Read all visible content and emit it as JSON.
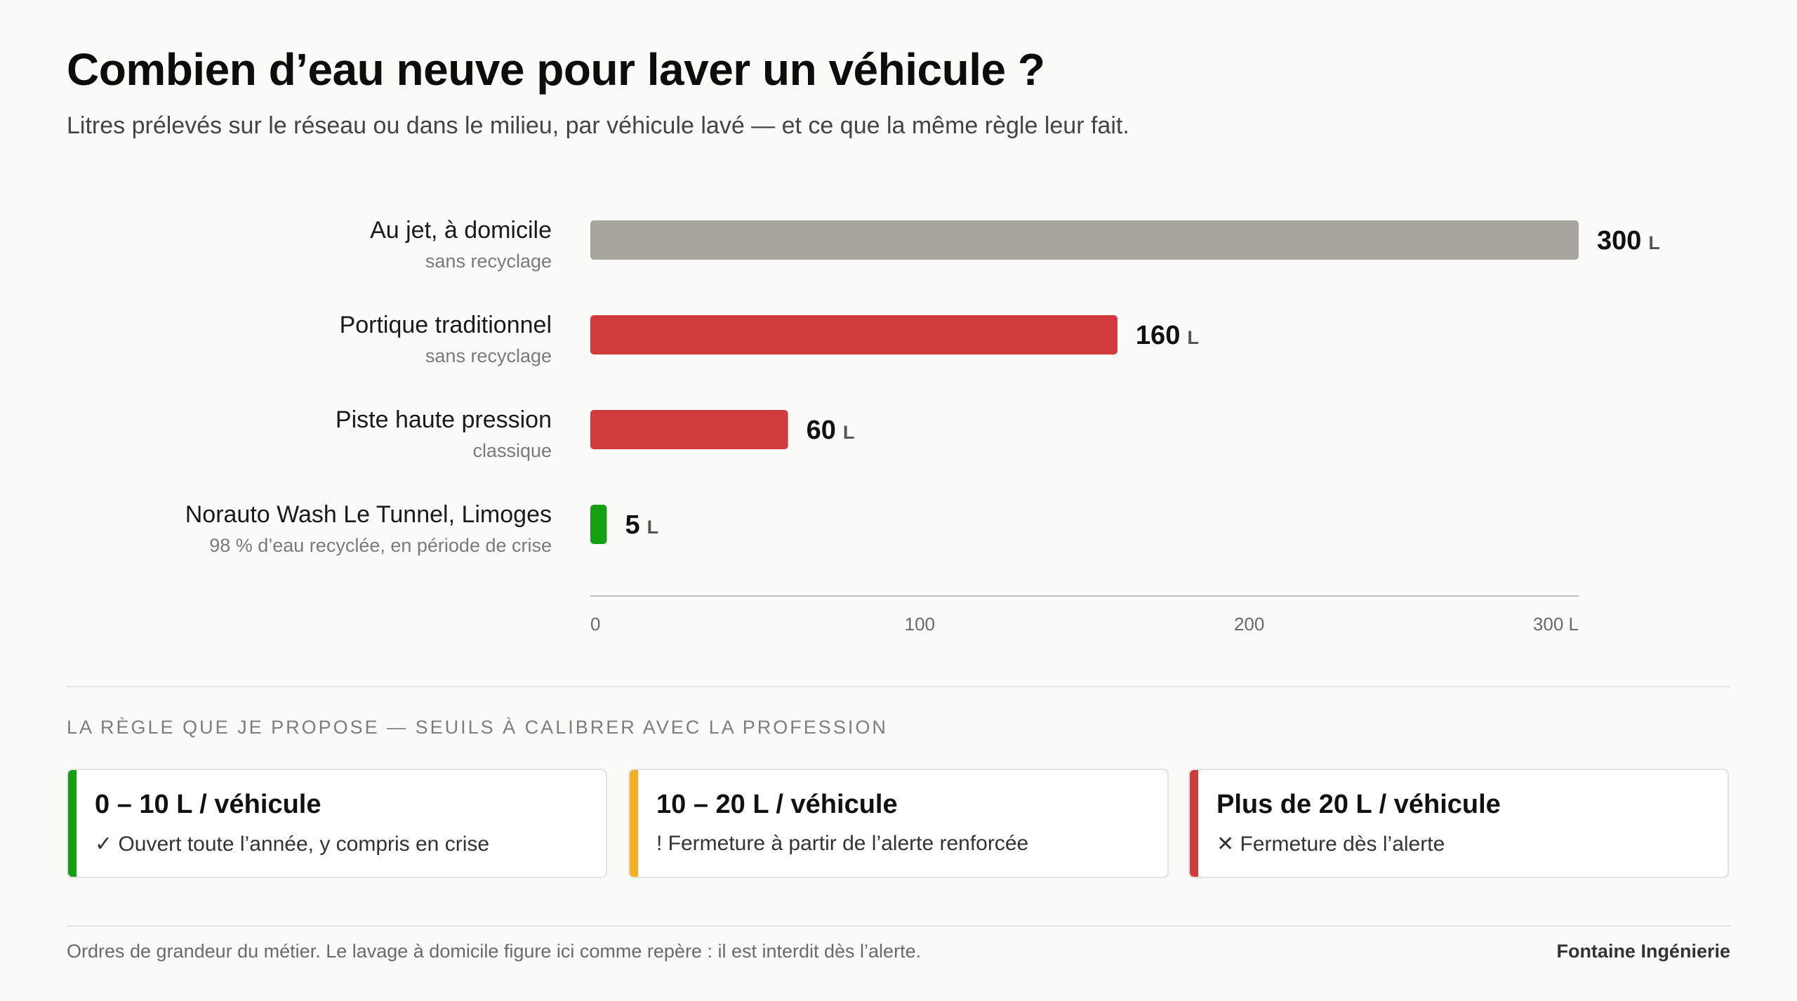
{
  "header": {
    "title": "Combien d’eau neuve pour laver un véhicule ?",
    "subtitle": "Litres prélevés sur le réseau ou dans le milieu, par véhicule lavé — et ce que la même règle leur fait."
  },
  "chart_data": {
    "type": "bar",
    "orientation": "horizontal",
    "categories": [
      "Au jet, à domicile",
      "Portique traditionnel",
      "Piste haute pression",
      "Norauto Wash Le Tunnel, Limoges"
    ],
    "category_notes": [
      "sans recyclage",
      "sans recyclage",
      "classique",
      "98 % d’eau recyclée, en période de crise"
    ],
    "values": [
      300,
      160,
      60,
      5
    ],
    "unit": "L",
    "bar_colors": [
      "#a8a59e",
      "#d13b3e",
      "#d13b3e",
      "#13a113"
    ],
    "xlim": [
      0,
      300
    ],
    "x_ticks": [
      "0",
      "100",
      "200",
      "300 L"
    ],
    "x_tick_values": [
      0,
      100,
      200,
      300
    ],
    "grid": false,
    "legend": "none"
  },
  "rule": {
    "heading": "La règle que je propose — seuils à calibrer avec la profession",
    "cards": [
      {
        "title": "0 – 10 L / véhicule",
        "description": "✓ Ouvert toute l’année, y compris en crise",
        "color": "#13a113"
      },
      {
        "title": "10 – 20 L / véhicule",
        "description": "! Fermeture à partir de l’alerte renforcée",
        "color": "#f4b021"
      },
      {
        "title": "Plus de 20 L / véhicule",
        "description": "✕ Fermeture dès l’alerte",
        "color": "#d13b3e"
      }
    ]
  },
  "footer": {
    "note": "Ordres de grandeur du métier. Le lavage à domicile figure ici comme repère : il est interdit dès l’alerte.",
    "brand": "Fontaine Ingénierie"
  }
}
